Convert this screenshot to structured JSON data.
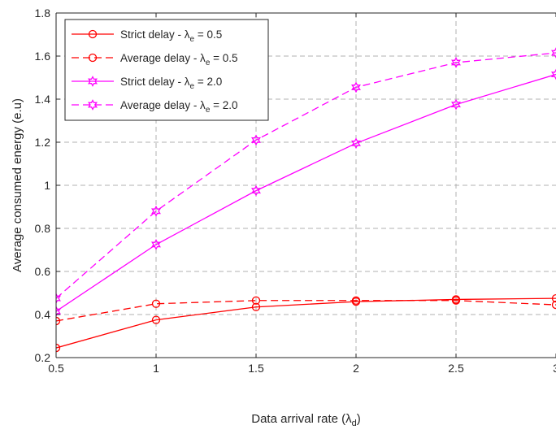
{
  "chart_data": {
    "type": "line",
    "title": "",
    "xlabel": "Data arrival rate (λ",
    "xlabel_sub": "d",
    "xlabel_end": ")",
    "ylabel": "Average consumed energy (e.u)",
    "xlim": [
      0.5,
      3
    ],
    "ylim": [
      0.2,
      1.8
    ],
    "xticks": [
      0.5,
      1,
      1.5,
      2,
      2.5,
      3
    ],
    "xtick_labels": [
      "0.5",
      "1",
      "1.5",
      "2",
      "2.5",
      "3"
    ],
    "yticks": [
      0.2,
      0.4,
      0.6,
      0.8,
      1.0,
      1.2,
      1.4,
      1.6,
      1.8
    ],
    "ytick_labels": [
      "0.2",
      "0.4",
      "0.6",
      "0.8",
      "1",
      "1.2",
      "1.4",
      "1.6",
      "1.8"
    ],
    "grid": true,
    "legend_position": "top-left",
    "x": [
      0.5,
      1,
      1.5,
      2,
      2.5,
      3
    ],
    "series": [
      {
        "name": "Strict delay - λ",
        "name_sub": "e",
        "name_end": " = 0.5",
        "color": "#ff0000",
        "dash": "solid",
        "marker": "circle",
        "values": [
          0.245,
          0.375,
          0.435,
          0.46,
          0.47,
          0.475
        ]
      },
      {
        "name": "Average delay - λ",
        "name_sub": "e",
        "name_end": " = 0.5",
        "color": "#ff0000",
        "dash": "dashed",
        "marker": "circle",
        "values": [
          0.37,
          0.45,
          0.465,
          0.465,
          0.465,
          0.445
        ]
      },
      {
        "name": "Strict delay - λ",
        "name_sub": "e",
        "name_end": " = 2.0",
        "color": "#ff00ff",
        "dash": "solid",
        "marker": "hexagram",
        "values": [
          0.415,
          0.725,
          0.975,
          1.195,
          1.375,
          1.515
        ]
      },
      {
        "name": "Average delay - λ",
        "name_sub": "e",
        "name_end": " = 2.0",
        "color": "#ff00ff",
        "dash": "dashed",
        "marker": "hexagram",
        "values": [
          0.475,
          0.88,
          1.21,
          1.455,
          1.57,
          1.615
        ]
      }
    ]
  }
}
